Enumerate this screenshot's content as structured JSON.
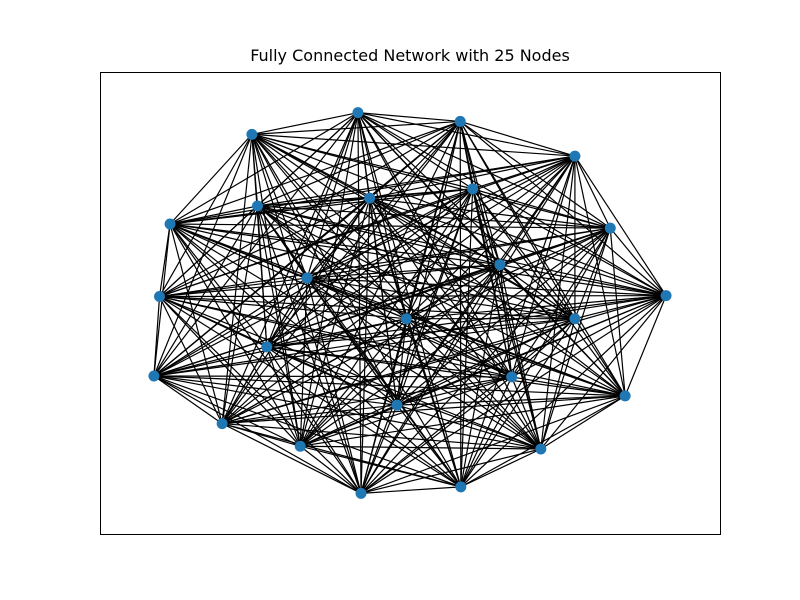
{
  "title": "Fully Connected Network with 25 Nodes",
  "colors": {
    "node": "#1f77b4",
    "edge": "#000000",
    "frame": "#000000",
    "background": "#ffffff"
  },
  "chart_data": {
    "type": "network",
    "graph": "complete",
    "node_count": 25,
    "xlim": [
      0,
      1
    ],
    "ylim": [
      0,
      1
    ],
    "axes_visible": false,
    "nodes": [
      {
        "id": 0,
        "x": 0.416,
        "y": 0.912
      },
      {
        "id": 1,
        "x": 0.581,
        "y": 0.893
      },
      {
        "id": 2,
        "x": 0.245,
        "y": 0.865
      },
      {
        "id": 3,
        "x": 0.766,
        "y": 0.818
      },
      {
        "id": 4,
        "x": 0.601,
        "y": 0.747
      },
      {
        "id": 5,
        "x": 0.435,
        "y": 0.727
      },
      {
        "id": 6,
        "x": 0.254,
        "y": 0.71
      },
      {
        "id": 7,
        "x": 0.113,
        "y": 0.671
      },
      {
        "id": 8,
        "x": 0.823,
        "y": 0.662
      },
      {
        "id": 9,
        "x": 0.645,
        "y": 0.583
      },
      {
        "id": 10,
        "x": 0.334,
        "y": 0.554
      },
      {
        "id": 11,
        "x": 0.096,
        "y": 0.514
      },
      {
        "id": 12,
        "x": 0.913,
        "y": 0.516
      },
      {
        "id": 13,
        "x": 0.766,
        "y": 0.466
      },
      {
        "id": 14,
        "x": 0.494,
        "y": 0.466
      },
      {
        "id": 15,
        "x": 0.269,
        "y": 0.405
      },
      {
        "id": 16,
        "x": 0.087,
        "y": 0.342
      },
      {
        "id": 17,
        "x": 0.664,
        "y": 0.34
      },
      {
        "id": 18,
        "x": 0.847,
        "y": 0.299
      },
      {
        "id": 19,
        "x": 0.479,
        "y": 0.279
      },
      {
        "id": 20,
        "x": 0.197,
        "y": 0.239
      },
      {
        "id": 21,
        "x": 0.323,
        "y": 0.19
      },
      {
        "id": 22,
        "x": 0.711,
        "y": 0.184
      },
      {
        "id": 23,
        "x": 0.582,
        "y": 0.102
      },
      {
        "id": 24,
        "x": 0.421,
        "y": 0.088
      }
    ]
  }
}
